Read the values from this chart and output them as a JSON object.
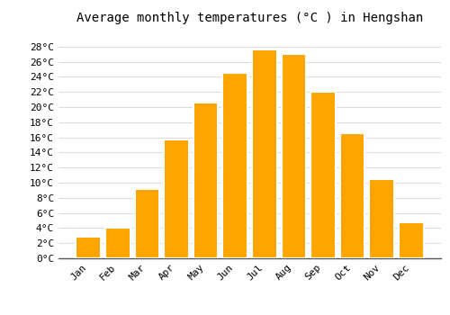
{
  "title": "Average monthly temperatures (°C ) in Hengshan",
  "months": [
    "Jan",
    "Feb",
    "Mar",
    "Apr",
    "May",
    "Jun",
    "Jul",
    "Aug",
    "Sep",
    "Oct",
    "Nov",
    "Dec"
  ],
  "temperatures": [
    2.8,
    4.0,
    9.2,
    15.7,
    20.6,
    24.5,
    27.6,
    27.0,
    22.0,
    16.5,
    10.5,
    4.8
  ],
  "bar_color": "#FFA500",
  "bar_edge_color": "#FFFFFF",
  "background_color": "#FFFFFF",
  "grid_color": "#DDDDDD",
  "ylim": [
    0,
    30
  ],
  "yticks": [
    0,
    2,
    4,
    6,
    8,
    10,
    12,
    14,
    16,
    18,
    20,
    22,
    24,
    26,
    28
  ],
  "title_fontsize": 10,
  "tick_fontsize": 8,
  "font_family": "monospace",
  "bar_width": 0.85
}
